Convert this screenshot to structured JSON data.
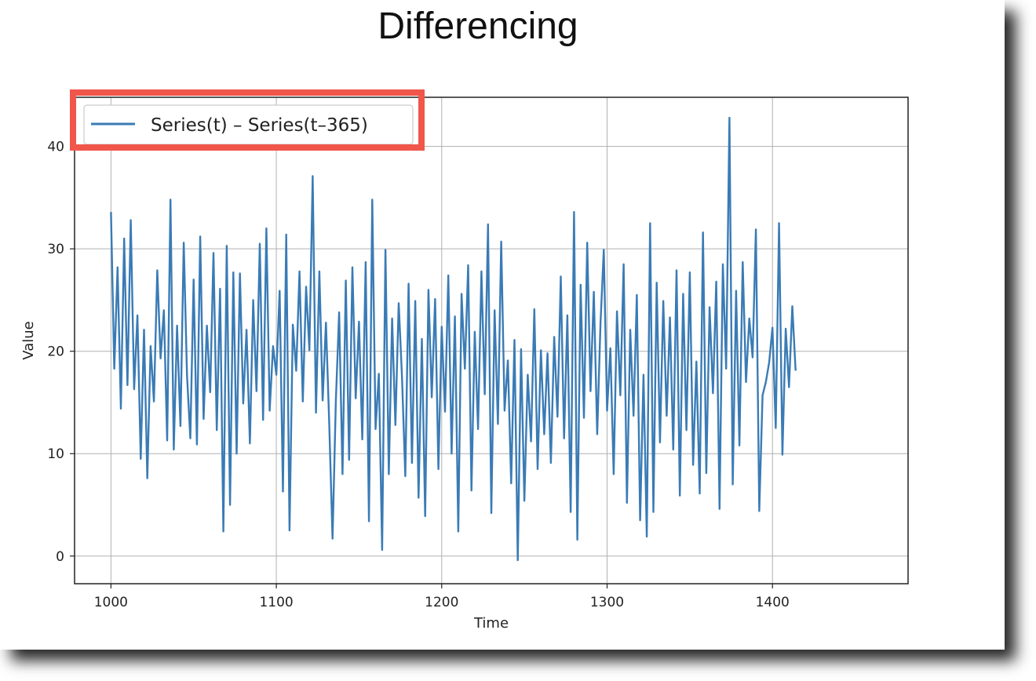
{
  "slide": {
    "title": "Differencing"
  },
  "colors": {
    "series": "#3a7bb5",
    "highlight": "#f0564a",
    "grid": "#b0b0b0",
    "axes": "#222222"
  },
  "chart_data": {
    "type": "line",
    "title": "",
    "xlabel": "Time",
    "ylabel": "Value",
    "xlim": [
      978,
      1482
    ],
    "ylim": [
      -2.7,
      44.8
    ],
    "xticks": [
      1000,
      1100,
      1200,
      1300,
      1400
    ],
    "yticks": [
      0,
      10,
      20,
      30,
      40
    ],
    "grid": true,
    "legend": {
      "placement": "top-left",
      "highlighted": true
    },
    "series": [
      {
        "name": "Series(t) – Series(t–365)",
        "color": "#3a7bb5",
        "x_start": 1000,
        "x_step": 2,
        "values": [
          33.6,
          18.3,
          28.2,
          14.4,
          31.0,
          16.7,
          32.8,
          16.3,
          23.5,
          9.5,
          22.1,
          7.6,
          20.5,
          15.1,
          27.9,
          19.3,
          24.0,
          11.3,
          34.8,
          10.4,
          22.5,
          12.7,
          30.6,
          17.6,
          11.5,
          27.0,
          10.9,
          31.2,
          13.4,
          22.5,
          16.0,
          29.6,
          12.3,
          26.1,
          2.4,
          30.3,
          5.0,
          27.7,
          10.0,
          27.6,
          14.9,
          22.1,
          11.0,
          25.0,
          16.1,
          30.5,
          13.3,
          32.0,
          14.2,
          20.5,
          17.7,
          25.9,
          6.3,
          31.4,
          2.5,
          22.6,
          18.1,
          27.8,
          15.1,
          26.3,
          20.1,
          37.1,
          14.0,
          27.8,
          15.2,
          22.8,
          12.9,
          1.7,
          15.1,
          23.8,
          8.0,
          26.9,
          9.4,
          28.2,
          15.4,
          22.9,
          11.4,
          28.7,
          3.4,
          34.8,
          12.4,
          17.8,
          0.6,
          29.9,
          8.0,
          23.2,
          12.8,
          24.7,
          17.5,
          7.8,
          26.6,
          9.1,
          24.9,
          5.7,
          21.2,
          3.9,
          26.0,
          15.5,
          25.1,
          8.5,
          22.4,
          14.1,
          27.4,
          10.0,
          23.4,
          2.4,
          25.6,
          18.3,
          28.4,
          6.4,
          21.9,
          12.4,
          27.8,
          15.8,
          32.4,
          4.2,
          24.0,
          12.9,
          30.7,
          14.2,
          19.1,
          7.1,
          21.1,
          -0.4,
          20.2,
          5.4,
          17.7,
          11.2,
          24.1,
          8.5,
          20.1,
          11.9,
          19.8,
          9.1,
          21.4,
          13.6,
          27.3,
          11.5,
          23.5,
          4.3,
          33.6,
          1.6,
          26.5,
          13.5,
          30.6,
          16.1,
          25.8,
          11.9,
          22.7,
          29.9,
          14.2,
          20.3,
          8.0,
          23.9,
          15.7,
          28.5,
          5.2,
          22.1,
          13.7,
          25.5,
          3.5,
          17.7,
          1.9,
          32.5,
          4.3,
          26.7,
          11.1,
          24.9,
          13.7,
          23.3,
          10.4,
          27.9,
          5.9,
          25.6,
          12.3,
          27.7,
          8.9,
          19.0,
          6.1,
          31.6,
          8.1,
          24.3,
          15.9,
          26.8,
          4.6,
          28.5,
          18.3,
          42.8,
          7.0,
          25.9,
          10.8,
          28.7,
          17.0,
          23.2,
          19.4,
          31.9,
          4.4,
          15.7,
          17.0,
          18.9,
          22.3,
          12.5,
          32.5,
          9.9,
          22.2,
          16.5,
          24.4,
          18.1
        ]
      }
    ]
  }
}
